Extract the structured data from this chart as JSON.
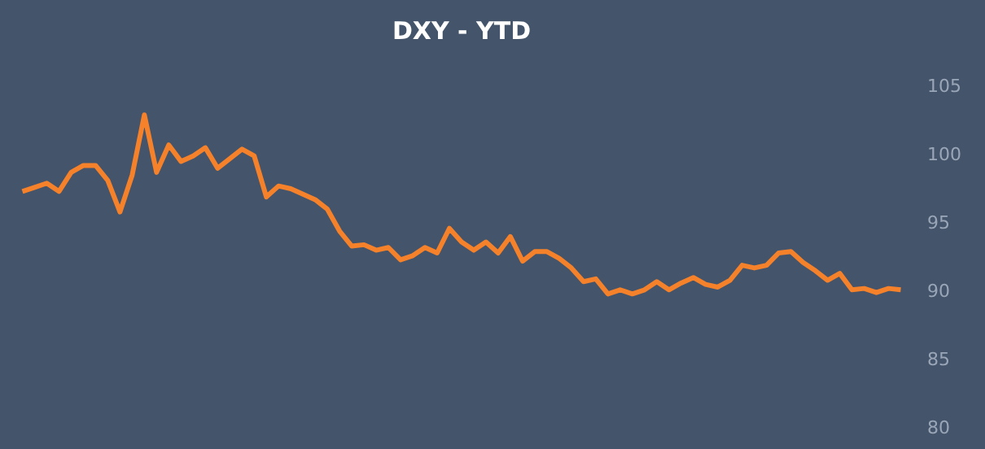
{
  "chart_data": {
    "type": "line",
    "title": "DXY - YTD",
    "categories": [
      null,
      null,
      null,
      null,
      null,
      null,
      null,
      null,
      null,
      null,
      null,
      null,
      null,
      null,
      null,
      null,
      null,
      null,
      null,
      null,
      null,
      null,
      null,
      null,
      null,
      null,
      null,
      null,
      null,
      null,
      null,
      null,
      null,
      null,
      null,
      null,
      null,
      null,
      null,
      null,
      null,
      null,
      null,
      null,
      null,
      null,
      null,
      null,
      null,
      null,
      null,
      null,
      null,
      null,
      null,
      null,
      null,
      null,
      null,
      null,
      null,
      null,
      null,
      null,
      null,
      null,
      null,
      null,
      null,
      null,
      null,
      null,
      null
    ],
    "series": [
      {
        "color": "#f5822a",
        "values": [
          97.3,
          97.6,
          97.9,
          97.3,
          98.7,
          99.2,
          99.2,
          98.1,
          95.8,
          98.5,
          102.9,
          98.7,
          100.7,
          99.5,
          99.9,
          100.5,
          99.0,
          99.7,
          100.4,
          99.9,
          96.9,
          97.7,
          97.5,
          97.1,
          96.7,
          96.0,
          94.4,
          93.3,
          93.4,
          93.0,
          93.2,
          92.3,
          92.6,
          93.2,
          92.8,
          94.6,
          93.6,
          93.0,
          93.6,
          92.8,
          94.0,
          92.2,
          92.9,
          92.9,
          92.4,
          91.7,
          90.7,
          90.9,
          89.8,
          90.1,
          89.8,
          90.1,
          90.7,
          90.1,
          90.6,
          91.0,
          90.5,
          90.3,
          90.8,
          91.9,
          91.7,
          91.9,
          92.8,
          92.9,
          92.1,
          91.5,
          90.8,
          91.3,
          90.1,
          90.2,
          89.9,
          90.2,
          90.1
        ]
      }
    ],
    "ylim": [
      80,
      105
    ],
    "yticks": [
      80,
      85,
      90,
      95,
      100,
      105
    ],
    "grid": false,
    "tick_labels": "y",
    "marker": "none",
    "line_style": "solid"
  }
}
